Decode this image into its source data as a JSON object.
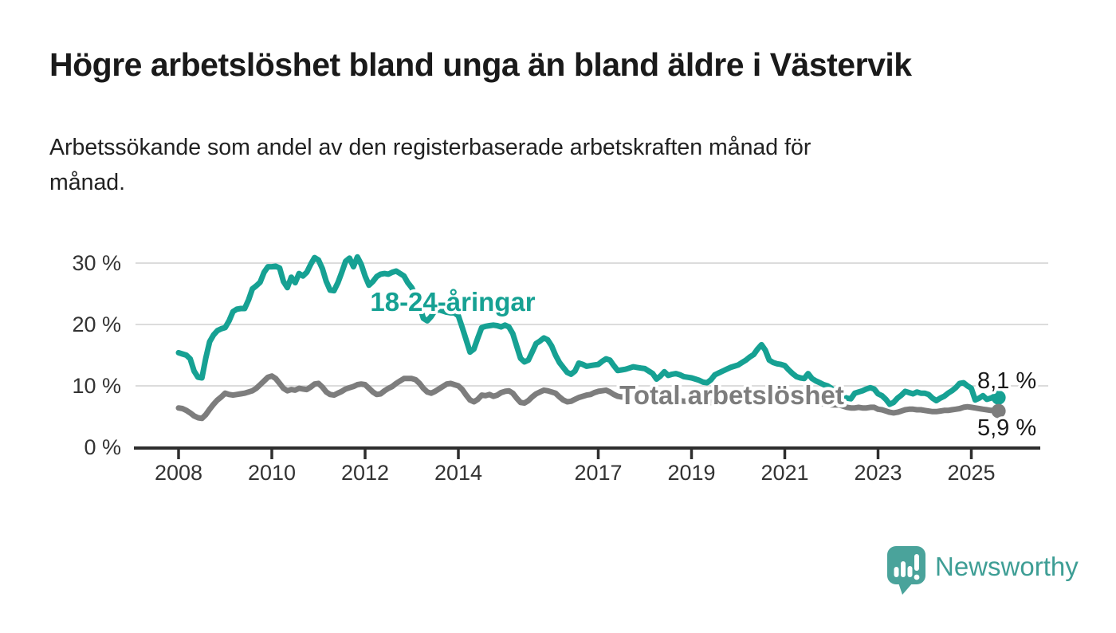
{
  "header": {
    "title": "Högre arbetslöshet bland unga än bland äldre i Västervik",
    "subtitle": "Arbetssökande som andel av den registerbaserade arbetskraften månad för månad.",
    "subtitle_lines": [
      "Arbetssökande som andel av den registerbaserade arbetskraften månad för",
      "månad."
    ]
  },
  "chart_data": {
    "type": "line",
    "title": "Högre arbetslöshet bland unga än bland äldre i Västervik",
    "xlabel": "",
    "ylabel": "",
    "unit": "%",
    "grid": true,
    "x_start_year": 2008,
    "x_step_months": 1,
    "x_end": "2025-08",
    "ylim": [
      0,
      33
    ],
    "x_tick_years": [
      2008,
      2010,
      2012,
      2014,
      2017,
      2019,
      2021,
      2023,
      2025
    ],
    "x_tick_labels": [
      "2008",
      "2010",
      "2012",
      "2014",
      "2017",
      "2019",
      "2021",
      "2023",
      "2025"
    ],
    "y_tick_values": [
      0,
      10,
      20,
      30
    ],
    "y_tick_labels": [
      "0 %",
      "10 %",
      "20 %",
      "30 %"
    ],
    "series": [
      {
        "id": "youth",
        "name": "18-24-åringar",
        "color": "#16a193",
        "end_label": "8,1 %",
        "end_value": 8.1,
        "values": [
          15.4,
          15.2,
          15.0,
          14.4,
          12.4,
          11.4,
          11.3,
          14.5,
          17.2,
          18.3,
          19.0,
          19.3,
          19.5,
          20.6,
          22.1,
          22.5,
          22.6,
          22.6,
          24.0,
          25.8,
          26.3,
          26.9,
          28.5,
          29.4,
          29.4,
          29.5,
          29.2,
          27.0,
          26.0,
          27.7,
          26.8,
          28.3,
          27.9,
          28.5,
          29.8,
          30.9,
          30.5,
          29.1,
          27.0,
          25.6,
          25.5,
          26.8,
          28.5,
          30.3,
          30.8,
          29.4,
          31.0,
          29.8,
          27.9,
          26.4,
          27.0,
          27.8,
          28.2,
          28.3,
          28.2,
          28.5,
          28.7,
          28.3,
          27.9,
          26.8,
          26.0,
          24.7,
          23.0,
          21.0,
          20.6,
          21.3,
          22.3,
          22.4,
          22.2,
          22.0,
          21.9,
          21.9,
          21.4,
          19.5,
          17.5,
          15.5,
          16.0,
          17.8,
          19.5,
          19.7,
          19.8,
          19.9,
          19.8,
          19.6,
          19.9,
          19.6,
          18.5,
          16.5,
          14.5,
          13.9,
          14.2,
          15.5,
          16.9,
          17.3,
          17.8,
          17.5,
          16.5,
          15.0,
          13.8,
          13.0,
          12.2,
          11.9,
          12.4,
          13.7,
          13.5,
          13.2,
          13.3,
          13.4,
          13.5,
          14.0,
          14.4,
          14.2,
          13.3,
          12.5,
          12.6,
          12.7,
          12.9,
          13.1,
          13.0,
          12.9,
          12.8,
          12.4,
          12.0,
          11.1,
          11.6,
          12.3,
          11.7,
          11.9,
          12.0,
          11.8,
          11.5,
          11.4,
          11.3,
          11.1,
          10.9,
          10.6,
          10.5,
          11.0,
          11.8,
          12.1,
          12.4,
          12.7,
          13.0,
          13.2,
          13.4,
          13.8,
          14.2,
          14.7,
          15.1,
          16.0,
          16.7,
          15.8,
          14.2,
          13.8,
          13.6,
          13.5,
          13.3,
          12.6,
          12.0,
          11.5,
          11.3,
          11.2,
          12.0,
          11.2,
          10.8,
          10.5,
          10.2,
          10.0,
          9.6,
          9.0,
          8.6,
          8.2,
          8.0,
          7.9,
          8.8,
          9.0,
          9.2,
          9.5,
          9.7,
          9.5,
          8.7,
          8.4,
          7.8,
          7.0,
          7.3,
          8.0,
          8.5,
          9.1,
          8.9,
          8.7,
          9.0,
          8.8,
          8.8,
          8.6,
          8.0,
          7.6,
          8.0,
          8.3,
          8.8,
          9.2,
          9.7,
          10.4,
          10.5,
          10.0,
          9.6,
          7.7,
          8.0,
          8.4,
          7.8,
          8.0,
          8.3,
          8.1
        ]
      },
      {
        "id": "total",
        "name": "Total arbetslöshet",
        "color": "#7d7d7d",
        "end_label": "5,9 %",
        "end_value": 5.9,
        "values": [
          6.4,
          6.3,
          6.0,
          5.6,
          5.1,
          4.8,
          4.7,
          5.3,
          6.2,
          7.0,
          7.7,
          8.2,
          8.8,
          8.6,
          8.5,
          8.6,
          8.7,
          8.8,
          9.0,
          9.2,
          9.6,
          10.2,
          10.8,
          11.4,
          11.6,
          11.2,
          10.4,
          9.6,
          9.2,
          9.4,
          9.3,
          9.6,
          9.5,
          9.4,
          9.8,
          10.3,
          10.4,
          9.8,
          9.0,
          8.6,
          8.5,
          8.8,
          9.1,
          9.5,
          9.7,
          9.9,
          10.2,
          10.3,
          10.2,
          9.6,
          9.0,
          8.6,
          8.7,
          9.2,
          9.6,
          9.9,
          10.4,
          10.8,
          11.2,
          11.2,
          11.2,
          11.0,
          10.4,
          9.6,
          9.0,
          8.8,
          9.1,
          9.5,
          9.9,
          10.3,
          10.4,
          10.2,
          10.0,
          9.4,
          8.5,
          7.7,
          7.4,
          7.8,
          8.5,
          8.4,
          8.6,
          8.3,
          8.5,
          8.9,
          9.1,
          9.2,
          8.8,
          8.0,
          7.3,
          7.2,
          7.6,
          8.2,
          8.7,
          9.0,
          9.3,
          9.2,
          9.0,
          8.8,
          8.2,
          7.7,
          7.4,
          7.5,
          7.8,
          8.1,
          8.3,
          8.5,
          8.6,
          8.9,
          9.1,
          9.2,
          9.3,
          9.0,
          8.6,
          8.3,
          8.2,
          8.3,
          8.4,
          8.5,
          8.4,
          8.3,
          8.2,
          8.1,
          7.9,
          7.6,
          7.5,
          7.4,
          7.5,
          7.6,
          7.7,
          7.6,
          7.5,
          7.5,
          7.5,
          7.4,
          7.3,
          7.2,
          7.2,
          7.3,
          7.5,
          7.6,
          7.7,
          7.8,
          7.9,
          8.0,
          8.2,
          8.4,
          8.6,
          8.9,
          9.0,
          9.0,
          8.9,
          8.8,
          8.7,
          8.6,
          8.5,
          8.4,
          8.3,
          8.2,
          8.0,
          7.8,
          7.7,
          7.6,
          7.5,
          7.4,
          7.3,
          7.2,
          7.1,
          7.0,
          6.9,
          6.9,
          6.9,
          6.7,
          6.5,
          6.4,
          6.4,
          6.5,
          6.4,
          6.4,
          6.5,
          6.5,
          6.2,
          6.1,
          5.9,
          5.7,
          5.6,
          5.7,
          5.9,
          6.1,
          6.2,
          6.2,
          6.1,
          6.1,
          6.0,
          5.9,
          5.8,
          5.8,
          5.9,
          6.0,
          6.0,
          6.1,
          6.2,
          6.3,
          6.5,
          6.6,
          6.5,
          6.4,
          6.3,
          6.2,
          6.1,
          6.0,
          6.0,
          5.9
        ]
      }
    ]
  },
  "footer": {
    "brand": "Newsworthy"
  },
  "colors": {
    "accent_teal": "#16a193",
    "line_gray": "#7d7d7d",
    "logo_teal": "#4aa39b",
    "logo_text_teal": "#3e9e95",
    "axis": "#2e2e2e",
    "gridline": "#dcdcdc",
    "tick_text": "#333333",
    "value_label_text": "#1a1a1a"
  }
}
